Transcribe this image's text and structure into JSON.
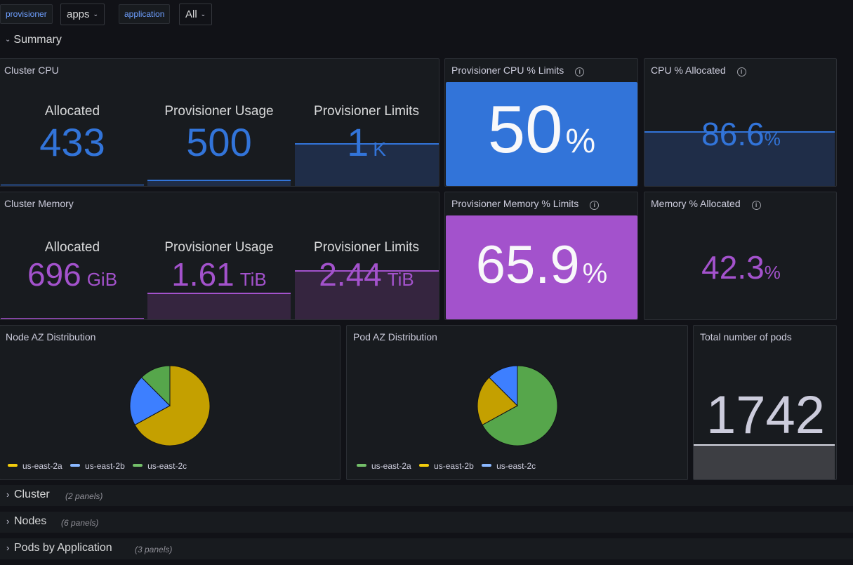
{
  "variables": [
    {
      "label": "provisioner",
      "value": "apps"
    },
    {
      "label": "application",
      "value": "All"
    }
  ],
  "summary_row": {
    "title": "Summary"
  },
  "colors": {
    "blue": "#3274d9",
    "purple": "#a352cc",
    "green": "#56a64b",
    "yellow": "#c4a000",
    "lightblue": "#5794f2",
    "white": "#f8f8fa",
    "pods_value": "#ccccdc"
  },
  "cluster_cpu": {
    "title": "Cluster CPU",
    "stats": [
      {
        "label": "Allocated",
        "value": "433",
        "unit": ""
      },
      {
        "label": "Provisioner Usage",
        "value": "500",
        "unit": ""
      },
      {
        "label": "Provisioner Limits",
        "value": "1",
        "unit": "K"
      }
    ]
  },
  "provisioner_cpu_limits": {
    "title": "Provisioner CPU % Limits",
    "value": "50",
    "unit": "%"
  },
  "cpu_allocated": {
    "title": "CPU % Allocated",
    "value": "86.6",
    "unit": "%"
  },
  "cluster_memory": {
    "title": "Cluster Memory",
    "stats": [
      {
        "label": "Allocated",
        "value": "696",
        "unit": "GiB"
      },
      {
        "label": "Provisioner Usage",
        "value": "1.61",
        "unit": "TiB"
      },
      {
        "label": "Provisioner Limits",
        "value": "2.44",
        "unit": "TiB"
      }
    ]
  },
  "provisioner_memory_limits": {
    "title": "Provisioner Memory % Limits",
    "value": "65.9",
    "unit": "%"
  },
  "memory_allocated": {
    "title": "Memory % Allocated",
    "value": "42.3",
    "unit": "%"
  },
  "node_az": {
    "title": "Node AZ Distribution",
    "legend": [
      "us-east-2a",
      "us-east-2b",
      "us-east-2c"
    ]
  },
  "pod_az": {
    "title": "Pod AZ Distribution",
    "legend": [
      "us-east-2a",
      "us-east-2b",
      "us-east-2c"
    ]
  },
  "total_pods": {
    "title": "Total number of pods",
    "value": "1742"
  },
  "collapsed_rows": [
    {
      "title": "Cluster",
      "count": "(2 panels)"
    },
    {
      "title": "Nodes",
      "count": "(6 panels)"
    },
    {
      "title": "Pods by Application",
      "count": "(3 panels)"
    }
  ],
  "chart_data": [
    {
      "type": "pie",
      "title": "Node AZ Distribution",
      "categories": [
        "us-east-2a",
        "us-east-2b",
        "us-east-2c"
      ],
      "values": [
        67,
        20.5,
        12.5
      ],
      "colors": [
        "#c4a000",
        "#3d7fff",
        "#56a64b"
      ],
      "legend": "bottom-left"
    },
    {
      "type": "pie",
      "title": "Pod AZ Distribution",
      "categories": [
        "us-east-2a",
        "us-east-2b",
        "us-east-2c"
      ],
      "values": [
        67,
        20.5,
        12.5
      ],
      "colors": [
        "#56a64b",
        "#c4a000",
        "#3d7fff"
      ],
      "legend": "bottom-left"
    }
  ]
}
